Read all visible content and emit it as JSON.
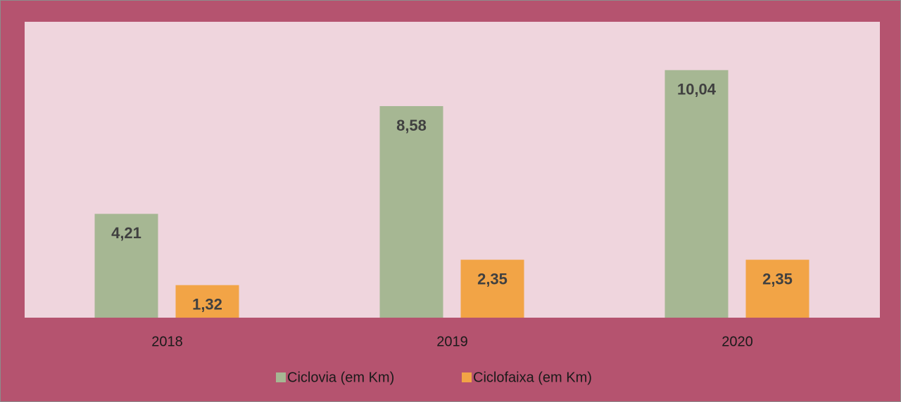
{
  "chart_data": {
    "type": "bar",
    "categories": [
      "2018",
      "2019",
      "2020"
    ],
    "series": [
      {
        "name": "Ciclovia (em Km)",
        "color": "#a6b793",
        "values": [
          4.21,
          8.58,
          10.04
        ],
        "value_labels": [
          "4,21",
          "8,58",
          "10,04"
        ]
      },
      {
        "name": "Ciclofaixa (em Km)",
        "color": "#f2a446",
        "values": [
          1.32,
          2.35,
          2.35
        ],
        "value_labels": [
          "1,32",
          "2,35",
          "2,35"
        ]
      }
    ],
    "ylim": [
      0,
      12
    ],
    "legend": "bottom"
  }
}
